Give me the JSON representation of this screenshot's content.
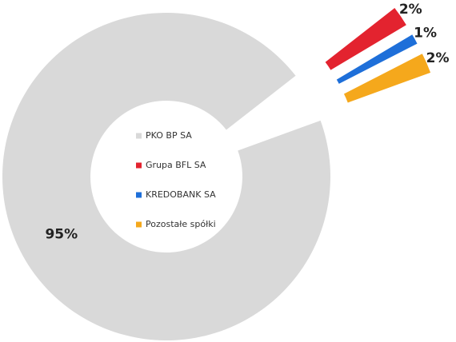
{
  "chart_data": {
    "type": "pie",
    "categories": [
      "PKO BP SA",
      "Grupa BFL SA",
      "KREDOBANK SA",
      "Pozostałe spółki"
    ],
    "values": [
      95,
      2,
      1,
      2
    ],
    "value_labels": [
      "95%",
      "2%",
      "1%",
      "2%"
    ],
    "colors": [
      "#d9d9d9",
      "#e3232f",
      "#1e6fd9",
      "#f5a81c"
    ],
    "donut": true
  }
}
